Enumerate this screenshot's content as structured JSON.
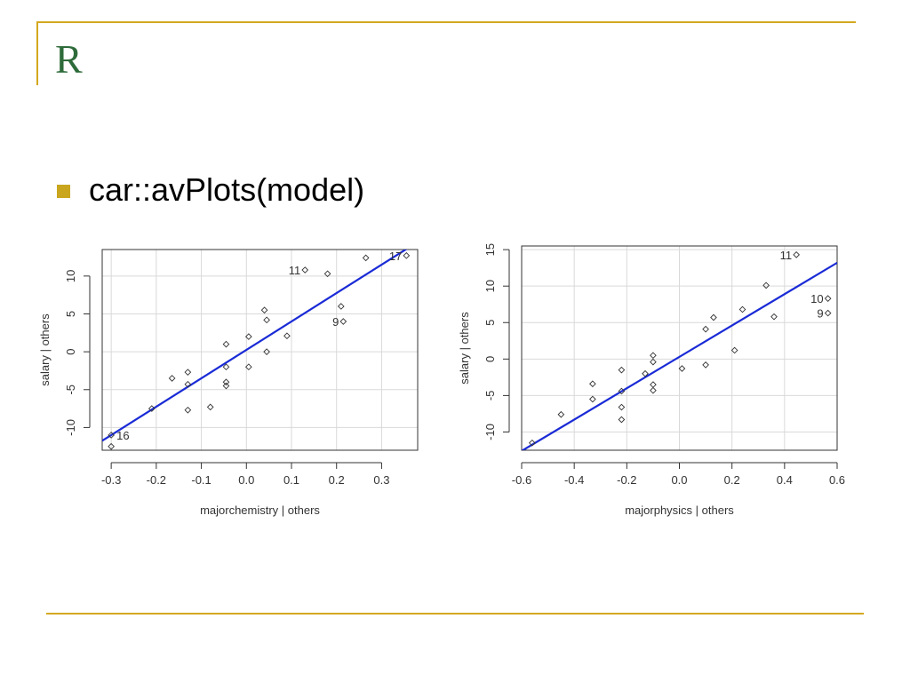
{
  "slide": {
    "title": "R",
    "bullet": "car::avPlots(model)"
  },
  "colors": {
    "accent_rule": "#d4a81e",
    "title": "#2e6b3a",
    "bullet_marker": "#c9a61e",
    "regression_line": "#1a2bd6",
    "grid": "#d9d9d9"
  },
  "chart_data": [
    {
      "type": "scatter",
      "xlabel": "majorchemistry | others",
      "ylabel": "salary | others",
      "xlim": [
        -0.32,
        0.38
      ],
      "ylim": [
        -13,
        13.5
      ],
      "xticks": [
        -0.3,
        -0.2,
        -0.1,
        0.0,
        0.1,
        0.2,
        0.3
      ],
      "yticks": [
        -10,
        -5,
        0,
        5,
        10
      ],
      "xtick_labels": [
        "-0.3",
        "-0.2",
        "-0.1",
        "0.0",
        "0.1",
        "0.2",
        "0.3"
      ],
      "ytick_labels": [
        "-10",
        "-5",
        "0",
        "5",
        "10"
      ],
      "grid": true,
      "regression_line": {
        "slope": 37.5,
        "intercept": 0.25
      },
      "points": [
        {
          "x": -0.3,
          "y": -11.0
        },
        {
          "x": -0.3,
          "y": -12.5
        },
        {
          "x": -0.21,
          "y": -7.5
        },
        {
          "x": -0.165,
          "y": -3.5
        },
        {
          "x": -0.13,
          "y": -2.7
        },
        {
          "x": -0.13,
          "y": -4.3
        },
        {
          "x": -0.13,
          "y": -7.7
        },
        {
          "x": -0.08,
          "y": -7.3
        },
        {
          "x": -0.045,
          "y": 1.0
        },
        {
          "x": -0.045,
          "y": -2.0
        },
        {
          "x": -0.045,
          "y": -4.0
        },
        {
          "x": -0.045,
          "y": -4.5
        },
        {
          "x": 0.005,
          "y": 2.0
        },
        {
          "x": 0.005,
          "y": -2.0
        },
        {
          "x": 0.04,
          "y": 5.5
        },
        {
          "x": 0.045,
          "y": 4.2
        },
        {
          "x": 0.045,
          "y": 0.0
        },
        {
          "x": 0.09,
          "y": 2.1
        },
        {
          "x": 0.13,
          "y": 10.8
        },
        {
          "x": 0.18,
          "y": 10.3
        },
        {
          "x": 0.21,
          "y": 6.0
        },
        {
          "x": 0.215,
          "y": 4.0
        },
        {
          "x": 0.265,
          "y": 12.4
        },
        {
          "x": 0.355,
          "y": 12.7
        }
      ],
      "point_labels": [
        {
          "text": "16",
          "x": -0.3,
          "y": -11.0,
          "side": "right"
        },
        {
          "text": "11",
          "x": 0.13,
          "y": 10.8,
          "side": "left"
        },
        {
          "text": "9",
          "x": 0.215,
          "y": 4.0,
          "side": "left"
        },
        {
          "text": "17",
          "x": 0.355,
          "y": 12.7,
          "side": "left"
        }
      ]
    },
    {
      "type": "scatter",
      "xlabel": "majorphysics | others",
      "ylabel": "salary | others",
      "xlim": [
        -0.6,
        0.6
      ],
      "ylim": [
        -12.5,
        15.5
      ],
      "xticks": [
        -0.6,
        -0.4,
        -0.2,
        0.0,
        0.2,
        0.4,
        0.6
      ],
      "yticks": [
        -10,
        -5,
        0,
        5,
        10,
        15
      ],
      "xtick_labels": [
        "-0.6",
        "-0.4",
        "-0.2",
        "0.0",
        "0.2",
        "0.4",
        "0.6"
      ],
      "ytick_labels": [
        "-10",
        "-5",
        "0",
        "5",
        "10",
        "15"
      ],
      "grid": true,
      "regression_line": {
        "slope": 21.5,
        "intercept": 0.3
      },
      "points": [
        {
          "x": -0.56,
          "y": -11.5
        },
        {
          "x": -0.45,
          "y": -7.6
        },
        {
          "x": -0.33,
          "y": -3.4
        },
        {
          "x": -0.33,
          "y": -5.5
        },
        {
          "x": -0.22,
          "y": -1.5
        },
        {
          "x": -0.22,
          "y": -4.4
        },
        {
          "x": -0.22,
          "y": -6.6
        },
        {
          "x": -0.22,
          "y": -8.3
        },
        {
          "x": -0.13,
          "y": -2.0
        },
        {
          "x": -0.1,
          "y": 0.5
        },
        {
          "x": -0.1,
          "y": -0.4
        },
        {
          "x": -0.1,
          "y": -3.5
        },
        {
          "x": -0.1,
          "y": -4.3
        },
        {
          "x": 0.01,
          "y": -1.3
        },
        {
          "x": 0.1,
          "y": 4.1
        },
        {
          "x": 0.1,
          "y": -0.8
        },
        {
          "x": 0.13,
          "y": 5.7
        },
        {
          "x": 0.21,
          "y": 1.2
        },
        {
          "x": 0.24,
          "y": 6.8
        },
        {
          "x": 0.33,
          "y": 10.1
        },
        {
          "x": 0.36,
          "y": 5.8
        },
        {
          "x": 0.445,
          "y": 14.3
        },
        {
          "x": 0.565,
          "y": 8.3
        },
        {
          "x": 0.565,
          "y": 6.3
        }
      ],
      "point_labels": [
        {
          "text": "11",
          "x": 0.445,
          "y": 14.3,
          "side": "left"
        },
        {
          "text": "10",
          "x": 0.565,
          "y": 8.3,
          "side": "left"
        },
        {
          "text": "9",
          "x": 0.565,
          "y": 6.3,
          "side": "left"
        }
      ]
    }
  ]
}
